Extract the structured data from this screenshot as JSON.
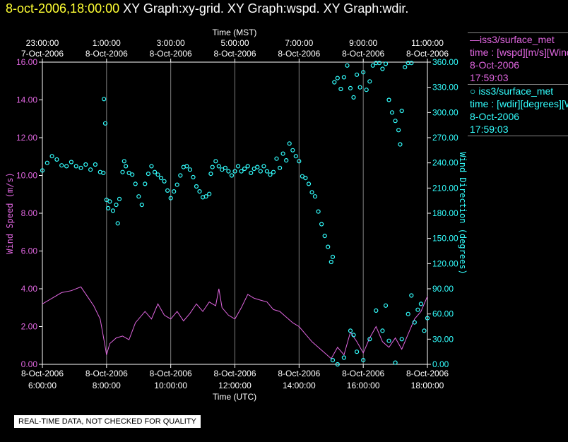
{
  "header": {
    "timestamp": "8-oct-2006,18:00:00",
    "graphs": "XY Graph:xy-grid.  XY Graph:wspd.  XY Graph:wdir."
  },
  "legend": {
    "series1": {
      "line1": "—iss3/surface_met",
      "line2": "time : [wspd][m/s][Wind Speed]",
      "line3": "8-Oct-2006",
      "line4": "17:59:03"
    },
    "series2": {
      "line1": "○ iss3/surface_met",
      "line2": "time : [wdir][degrees][Wind Direction]",
      "line3": "8-Oct-2006",
      "line4": "17:59:03"
    }
  },
  "notice": "REAL-TIME DATA, NOT CHECKED FOR QUALITY",
  "colors": {
    "wspd": "#e066e0",
    "wdir": "#33ffff",
    "grid": "#808080",
    "axis": "#ffffff"
  },
  "chart_data": {
    "type": "scatter",
    "title": "XY Graph:xy-grid.  XY Graph:wspd.  XY Graph:wdir.",
    "xlabel_bottom": "Time (UTC)",
    "xlabel_top": "Time (MST)",
    "ylabel_left": "Wind Speed (m/s)",
    "ylabel_right": "Wind Direction (degrees)",
    "xlim_hours_utc": [
      6.0,
      18.0
    ],
    "ylim_left": [
      0,
      16
    ],
    "ylim_right": [
      0,
      360
    ],
    "grid": true,
    "bottom_ticks": [
      {
        "h": 6,
        "l1": "8-Oct-2006",
        "l2": "6:00:00"
      },
      {
        "h": 8,
        "l1": "8-Oct-2006",
        "l2": "8:00:00"
      },
      {
        "h": 10,
        "l1": "8-Oct-2006",
        "l2": "10:00:00"
      },
      {
        "h": 12,
        "l1": "8-Oct-2006",
        "l2": "12:00:00"
      },
      {
        "h": 14,
        "l1": "8-Oct-2006",
        "l2": "14:00:00"
      },
      {
        "h": 16,
        "l1": "8-Oct-2006",
        "l2": "16:00:00"
      },
      {
        "h": 18,
        "l1": "8-Oct-2006",
        "l2": "18:00:00"
      }
    ],
    "top_ticks": [
      {
        "h": 6,
        "l1": "23:00:00",
        "l2": "7-Oct-2006"
      },
      {
        "h": 8,
        "l1": "1:00:00",
        "l2": "8-Oct-2006"
      },
      {
        "h": 10,
        "l1": "3:00:00",
        "l2": "8-Oct-2006"
      },
      {
        "h": 12,
        "l1": "5:00:00",
        "l2": "8-Oct-2006"
      },
      {
        "h": 14,
        "l1": "7:00:00",
        "l2": "8-Oct-2006"
      },
      {
        "h": 16,
        "l1": "9:00:00",
        "l2": "8-Oct-2006"
      },
      {
        "h": 18,
        "l1": "11:00:00",
        "l2": "8-Oct-2006"
      }
    ],
    "left_ticks": [
      "0.00",
      "2.00",
      "4.00",
      "6.00",
      "8.00",
      "10.00",
      "12.00",
      "14.00",
      "16.00"
    ],
    "right_ticks": [
      "0.00",
      "30.00",
      "60.00",
      "90.00",
      "120.00",
      "150.00",
      "180.00",
      "210.00",
      "240.00",
      "270.00",
      "300.00",
      "330.00",
      "360.00"
    ],
    "series": [
      {
        "name": "Wind Speed",
        "style": "line",
        "axis": "left",
        "points": [
          [
            6.0,
            3.2
          ],
          [
            6.3,
            3.5
          ],
          [
            6.6,
            3.8
          ],
          [
            6.9,
            3.9
          ],
          [
            7.2,
            4.1
          ],
          [
            7.4,
            3.6
          ],
          [
            7.6,
            3.1
          ],
          [
            7.8,
            2.4
          ],
          [
            7.95,
            1.0
          ],
          [
            8.0,
            0.5
          ],
          [
            8.1,
            1.1
          ],
          [
            8.3,
            1.4
          ],
          [
            8.5,
            1.5
          ],
          [
            8.7,
            1.3
          ],
          [
            8.9,
            2.2
          ],
          [
            9.2,
            2.8
          ],
          [
            9.4,
            2.4
          ],
          [
            9.6,
            3.2
          ],
          [
            9.8,
            2.6
          ],
          [
            10.0,
            2.4
          ],
          [
            10.2,
            2.8
          ],
          [
            10.4,
            2.3
          ],
          [
            10.6,
            2.7
          ],
          [
            10.8,
            3.2
          ],
          [
            11.0,
            2.8
          ],
          [
            11.2,
            3.3
          ],
          [
            11.4,
            3.1
          ],
          [
            11.5,
            4.0
          ],
          [
            11.6,
            3.0
          ],
          [
            11.8,
            2.6
          ],
          [
            12.0,
            2.4
          ],
          [
            12.2,
            3.0
          ],
          [
            12.4,
            3.7
          ],
          [
            12.6,
            3.5
          ],
          [
            12.8,
            3.4
          ],
          [
            13.0,
            3.3
          ],
          [
            13.2,
            2.9
          ],
          [
            13.4,
            2.8
          ],
          [
            13.6,
            2.5
          ],
          [
            13.8,
            2.2
          ],
          [
            14.0,
            2.0
          ],
          [
            14.2,
            1.6
          ],
          [
            14.4,
            1.2
          ],
          [
            14.6,
            0.9
          ],
          [
            14.8,
            0.6
          ],
          [
            15.0,
            0.3
          ],
          [
            15.2,
            0.9
          ],
          [
            15.4,
            0.5
          ],
          [
            15.6,
            1.7
          ],
          [
            15.8,
            1.2
          ],
          [
            16.0,
            0.6
          ],
          [
            16.2,
            1.4
          ],
          [
            16.4,
            2.0
          ],
          [
            16.6,
            1.2
          ],
          [
            16.8,
            0.9
          ],
          [
            17.0,
            1.4
          ],
          [
            17.2,
            0.8
          ],
          [
            17.4,
            1.6
          ],
          [
            17.6,
            2.4
          ],
          [
            17.8,
            2.8
          ],
          [
            18.0,
            3.6
          ]
        ]
      },
      {
        "name": "Wind Direction",
        "style": "circles",
        "axis": "right",
        "points": [
          [
            6.0,
            231
          ],
          [
            6.15,
            240
          ],
          [
            6.3,
            248
          ],
          [
            6.45,
            244
          ],
          [
            6.6,
            237
          ],
          [
            6.75,
            236
          ],
          [
            6.9,
            241
          ],
          [
            7.05,
            236
          ],
          [
            7.2,
            234
          ],
          [
            7.35,
            238
          ],
          [
            7.5,
            232
          ],
          [
            7.65,
            238
          ],
          [
            7.8,
            229
          ],
          [
            7.9,
            228
          ],
          [
            7.92,
            316
          ],
          [
            7.96,
            287
          ],
          [
            8.0,
            196
          ],
          [
            8.05,
            186
          ],
          [
            8.1,
            194
          ],
          [
            8.2,
            183
          ],
          [
            8.3,
            190
          ],
          [
            8.35,
            168
          ],
          [
            8.4,
            197
          ],
          [
            8.5,
            229
          ],
          [
            8.55,
            242
          ],
          [
            8.6,
            236
          ],
          [
            8.7,
            228
          ],
          [
            8.8,
            226
          ],
          [
            8.9,
            215
          ],
          [
            9.0,
            200
          ],
          [
            9.1,
            190
          ],
          [
            9.2,
            215
          ],
          [
            9.3,
            227
          ],
          [
            9.4,
            236
          ],
          [
            9.5,
            229
          ],
          [
            9.6,
            226
          ],
          [
            9.7,
            222
          ],
          [
            9.8,
            218
          ],
          [
            9.9,
            207
          ],
          [
            10.0,
            198
          ],
          [
            10.1,
            206
          ],
          [
            10.2,
            214
          ],
          [
            10.3,
            225
          ],
          [
            10.4,
            235
          ],
          [
            10.5,
            236
          ],
          [
            10.6,
            232
          ],
          [
            10.7,
            223
          ],
          [
            10.8,
            212
          ],
          [
            10.9,
            206
          ],
          [
            11.0,
            199
          ],
          [
            11.1,
            200
          ],
          [
            11.2,
            203
          ],
          [
            11.25,
            227
          ],
          [
            11.3,
            235
          ],
          [
            11.4,
            242
          ],
          [
            11.5,
            236
          ],
          [
            11.6,
            232
          ],
          [
            11.7,
            234
          ],
          [
            11.8,
            230
          ],
          [
            11.9,
            225
          ],
          [
            12.0,
            230
          ],
          [
            12.1,
            236
          ],
          [
            12.2,
            230
          ],
          [
            12.3,
            233
          ],
          [
            12.4,
            236
          ],
          [
            12.5,
            228
          ],
          [
            12.6,
            233
          ],
          [
            12.7,
            235
          ],
          [
            12.8,
            230
          ],
          [
            12.9,
            236
          ],
          [
            13.0,
            230
          ],
          [
            13.1,
            226
          ],
          [
            13.2,
            229
          ],
          [
            13.3,
            245
          ],
          [
            13.4,
            234
          ],
          [
            13.5,
            251
          ],
          [
            13.6,
            243
          ],
          [
            13.7,
            263
          ],
          [
            13.8,
            255
          ],
          [
            13.9,
            248
          ],
          [
            14.0,
            242
          ],
          [
            14.1,
            224
          ],
          [
            14.2,
            222
          ],
          [
            14.3,
            215
          ],
          [
            14.4,
            205
          ],
          [
            14.5,
            200
          ],
          [
            14.6,
            182
          ],
          [
            14.7,
            167
          ],
          [
            14.8,
            153
          ],
          [
            14.9,
            140
          ],
          [
            15.0,
            122
          ],
          [
            15.05,
            128
          ],
          [
            15.1,
            336
          ],
          [
            15.2,
            341
          ],
          [
            15.3,
            328
          ],
          [
            15.4,
            342
          ],
          [
            15.5,
            356
          ],
          [
            15.6,
            329
          ],
          [
            15.7,
            318
          ],
          [
            15.8,
            345
          ],
          [
            15.9,
            330
          ],
          [
            16.0,
            348
          ],
          [
            16.1,
            327
          ],
          [
            16.2,
            337
          ],
          [
            16.3,
            356
          ],
          [
            16.4,
            359
          ],
          [
            16.5,
            359
          ],
          [
            16.6,
            352
          ],
          [
            16.7,
            358
          ],
          [
            16.8,
            315
          ],
          [
            16.9,
            300
          ],
          [
            17.0,
            290
          ],
          [
            17.1,
            279
          ],
          [
            17.15,
            262
          ],
          [
            17.2,
            302
          ],
          [
            17.3,
            354
          ],
          [
            17.4,
            359
          ],
          [
            17.5,
            359
          ],
          [
            15.05,
            5
          ],
          [
            15.2,
            0
          ],
          [
            15.4,
            8
          ],
          [
            15.6,
            40
          ],
          [
            15.7,
            35
          ],
          [
            15.8,
            15
          ],
          [
            16.0,
            5
          ],
          [
            16.2,
            30
          ],
          [
            16.4,
            64
          ],
          [
            16.6,
            40
          ],
          [
            16.7,
            70
          ],
          [
            16.8,
            28
          ],
          [
            17.0,
            2
          ],
          [
            17.2,
            30
          ],
          [
            17.4,
            60
          ],
          [
            17.5,
            82
          ],
          [
            17.6,
            50
          ],
          [
            17.7,
            65
          ],
          [
            17.8,
            72
          ],
          [
            17.9,
            40
          ],
          [
            18.0,
            55
          ]
        ]
      }
    ]
  }
}
